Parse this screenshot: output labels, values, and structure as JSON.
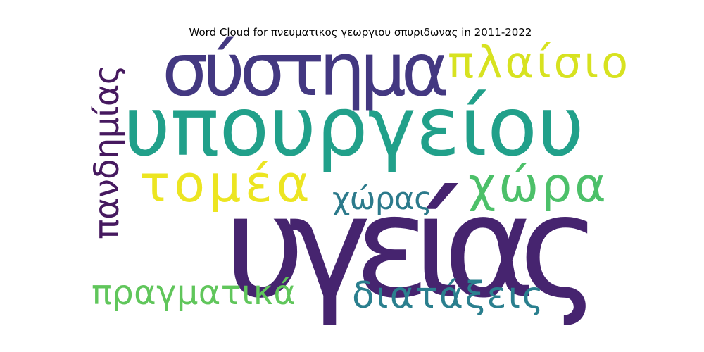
{
  "chart_data": {
    "type": "wordcloud",
    "title": "Word Cloud for πνευματικος γεωργιου σπυριδωνας in 2011-2022",
    "words": [
      {
        "text": "υγείας",
        "weight": 1.0,
        "color": "#46246f",
        "orientation": "horizontal"
      },
      {
        "text": "υπουργείου",
        "weight": 0.82,
        "color": "#21a08a",
        "orientation": "horizontal"
      },
      {
        "text": "σύστημα",
        "weight": 0.6,
        "color": "#433881",
        "orientation": "horizontal"
      },
      {
        "text": "χώρα",
        "weight": 0.46,
        "color": "#4cc069",
        "orientation": "horizontal"
      },
      {
        "text": "τομέα",
        "weight": 0.46,
        "color": "#ece521",
        "orientation": "horizontal"
      },
      {
        "text": "πλαίσιο",
        "weight": 0.42,
        "color": "#d7e220",
        "orientation": "horizontal"
      },
      {
        "text": "πανδημίας",
        "weight": 0.34,
        "color": "#46195f",
        "orientation": "vertical"
      },
      {
        "text": "διατάξεις",
        "weight": 0.34,
        "color": "#2a7f8e",
        "orientation": "horizontal"
      },
      {
        "text": "πραγματικά",
        "weight": 0.34,
        "color": "#60c65b",
        "orientation": "horizontal"
      },
      {
        "text": "χώρας",
        "weight": 0.3,
        "color": "#2c7a8b",
        "orientation": "horizontal"
      }
    ]
  }
}
